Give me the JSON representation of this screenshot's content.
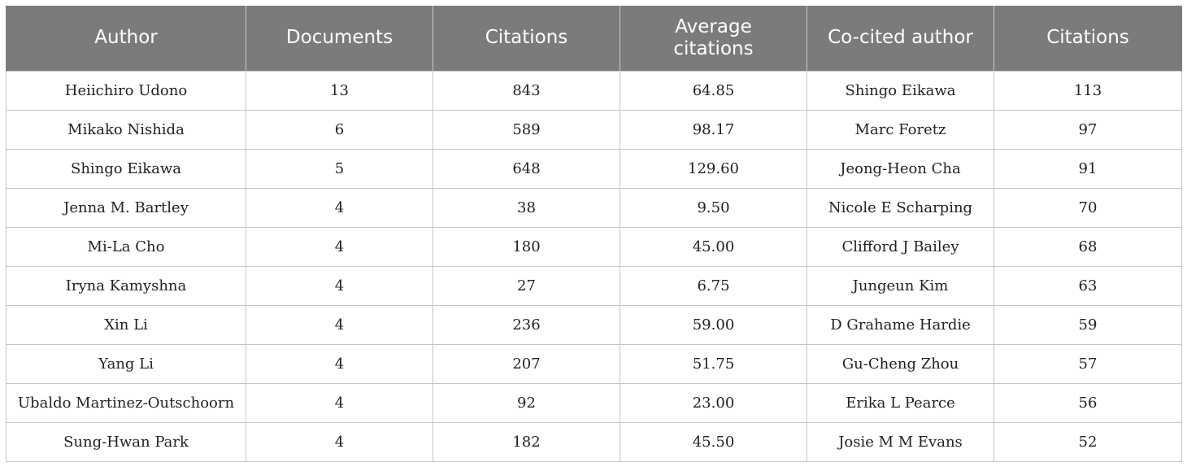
{
  "table": {
    "headers": [
      "Author",
      "Documents",
      "Citations",
      "Average\ncitations",
      "Co-cited author",
      "Citations"
    ],
    "rows": [
      [
        "Heiichiro Udono",
        "13",
        "843",
        "64.85",
        "Shingo Eikawa",
        "113"
      ],
      [
        "Mikako Nishida",
        "6",
        "589",
        "98.17",
        "Marc Foretz",
        "97"
      ],
      [
        "Shingo Eikawa",
        "5",
        "648",
        "129.60",
        "Jeong-Heon Cha",
        "91"
      ],
      [
        "Jenna M. Bartley",
        "4",
        "38",
        "9.50",
        "Nicole E Scharping",
        "70"
      ],
      [
        "Mi-La Cho",
        "4",
        "180",
        "45.00",
        "Clifford J Bailey",
        "68"
      ],
      [
        "Iryna Kamyshna",
        "4",
        "27",
        "6.75",
        "Jungeun Kim",
        "63"
      ],
      [
        "Xin Li",
        "4",
        "236",
        "59.00",
        "D Grahame Hardie",
        "59"
      ],
      [
        "Yang Li",
        "4",
        "207",
        "51.75",
        "Gu-Cheng Zhou",
        "57"
      ],
      [
        "Ubaldo Martinez-Outschoorn",
        "4",
        "92",
        "23.00",
        "Erika L Pearce",
        "56"
      ],
      [
        "Sung-Hwan Park",
        "4",
        "182",
        "45.50",
        "Josie M M Evans",
        "52"
      ]
    ]
  },
  "colors": {
    "header_background": "#7b7b7b",
    "header_text": "#ffffff",
    "grid_line": "#c6c6c6"
  }
}
